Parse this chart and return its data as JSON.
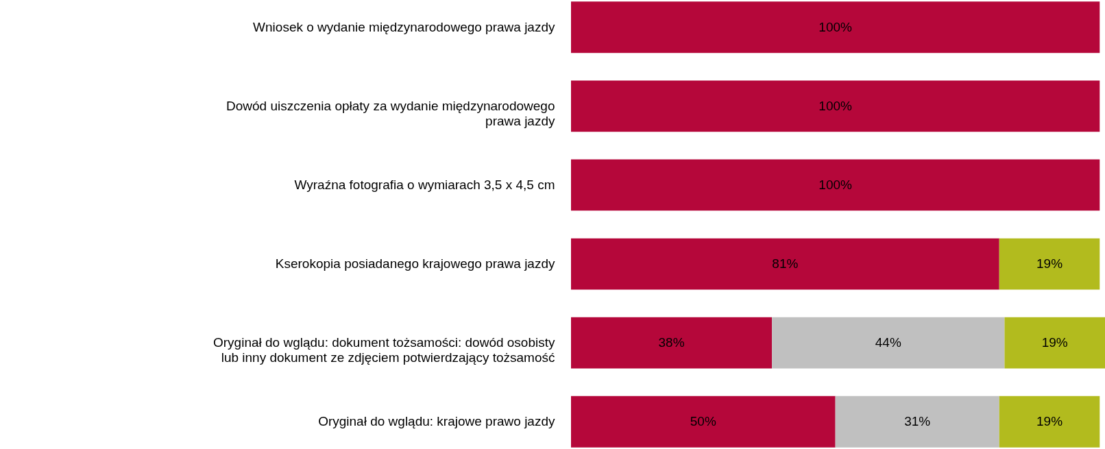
{
  "chart_data": {
    "type": "bar",
    "orientation": "horizontal",
    "stacked": true,
    "tick_labels": "y",
    "xlim": [
      0,
      101
    ],
    "categories": [
      "Wniosek o wydanie międzynarodowego prawa jazdy",
      "Dowód uiszczenia opłaty za wydanie międzynarodowego prawa jazdy",
      "Wyraźna fotografia o wymiarach 3,5 x 4,5 cm",
      "Kserokopia posiadanego krajowego prawa jazdy",
      "Oryginał do wglądu: dokument tożsamości: dowód osobisty lub inny dokument ze zdjęciem potwierdzający tożsamość",
      "Oryginał do wglądu: krajowe prawo jazdy"
    ],
    "series": [
      {
        "color": "#b5073a",
        "values": [
          100,
          100,
          100,
          81,
          38,
          50
        ],
        "value_labels": [
          "100%",
          "100%",
          "100%",
          "81%",
          "38%",
          "50%"
        ]
      },
      {
        "color": "#c0c0c0",
        "values": [
          null,
          null,
          null,
          null,
          44,
          31
        ],
        "value_labels": [
          null,
          null,
          null,
          null,
          "44%",
          "31%"
        ]
      },
      {
        "color": "#b2bb1e",
        "values": [
          null,
          null,
          null,
          19,
          19,
          19
        ],
        "value_labels": [
          null,
          null,
          null,
          "19%",
          "19%",
          "19%"
        ]
      }
    ]
  }
}
